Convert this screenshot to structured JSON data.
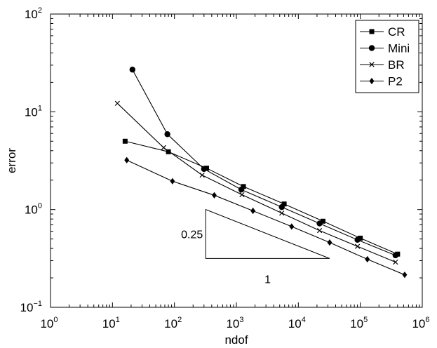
{
  "chart_data": {
    "type": "line",
    "title": "",
    "xlabel": "ndof",
    "ylabel": "error",
    "xscale": "log",
    "yscale": "log",
    "xlim": [
      1,
      1000000
    ],
    "ylim": [
      0.1,
      100
    ],
    "xticks": [
      {
        "base": "10",
        "exp": "0"
      },
      {
        "base": "10",
        "exp": "1"
      },
      {
        "base": "10",
        "exp": "2"
      },
      {
        "base": "10",
        "exp": "3"
      },
      {
        "base": "10",
        "exp": "4"
      },
      {
        "base": "10",
        "exp": "5"
      },
      {
        "base": "10",
        "exp": "6"
      }
    ],
    "yticks": [
      {
        "base": "10",
        "exp": "−1"
      },
      {
        "base": "10",
        "exp": "0"
      },
      {
        "base": "10",
        "exp": "1"
      },
      {
        "base": "10",
        "exp": "2"
      }
    ],
    "grid": false,
    "legend_position": "top-right",
    "series": [
      {
        "name": "CR",
        "marker": "square",
        "x": [
          16,
          80,
          330,
          1300,
          5900,
          25000,
          100000,
          400000
        ],
        "y": [
          5.0,
          3.9,
          2.65,
          1.72,
          1.14,
          0.76,
          0.51,
          0.35
        ]
      },
      {
        "name": "Mini",
        "marker": "circle",
        "x": [
          21,
          77,
          300,
          1200,
          5400,
          22000,
          90000,
          370000
        ],
        "y": [
          27,
          5.9,
          2.6,
          1.6,
          1.06,
          0.72,
          0.49,
          0.34
        ]
      },
      {
        "name": "BR",
        "marker": "x",
        "x": [
          12,
          67,
          280,
          1230,
          5400,
          22000,
          90000,
          370000
        ],
        "y": [
          12.2,
          4.3,
          2.25,
          1.42,
          0.92,
          0.61,
          0.42,
          0.29
        ]
      },
      {
        "name": "P2",
        "marker": "diamond",
        "x": [
          17,
          93,
          440,
          1850,
          7800,
          32000,
          130000,
          520000
        ],
        "y": [
          3.2,
          1.95,
          1.4,
          0.97,
          0.67,
          0.46,
          0.31,
          0.215
        ]
      }
    ],
    "annotations": {
      "slope_triangle": {
        "vertices": [
          [
            320,
            1.0
          ],
          [
            320,
            0.316
          ],
          [
            32000,
            0.316
          ]
        ],
        "rise_label": "0.25",
        "run_label": "1"
      }
    }
  }
}
